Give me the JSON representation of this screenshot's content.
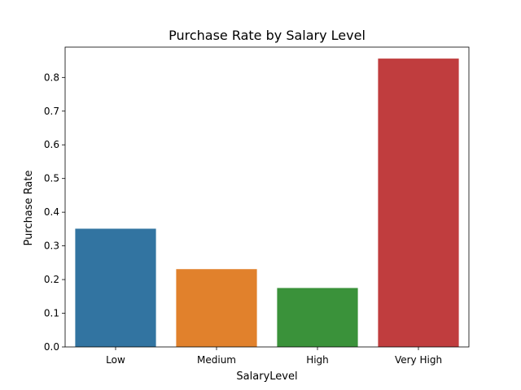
{
  "chart_data": {
    "type": "bar",
    "title": "Purchase Rate by Salary Level",
    "xlabel": "SalaryLevel",
    "ylabel": "Purchase Rate",
    "categories": [
      "Low",
      "Medium",
      "High",
      "Very High"
    ],
    "values": [
      0.351,
      0.231,
      0.175,
      0.856
    ],
    "colors": [
      "#3274a1",
      "#e1812c",
      "#3a923a",
      "#c03d3e"
    ],
    "ylim": [
      0,
      0.89
    ],
    "yticks": [
      0.0,
      0.1,
      0.2,
      0.3,
      0.4,
      0.5,
      0.6,
      0.7,
      0.8
    ],
    "ytick_labels": [
      "0.0",
      "0.1",
      "0.2",
      "0.3",
      "0.4",
      "0.5",
      "0.6",
      "0.7",
      "0.8"
    ],
    "grid": false,
    "legend": "none"
  }
}
